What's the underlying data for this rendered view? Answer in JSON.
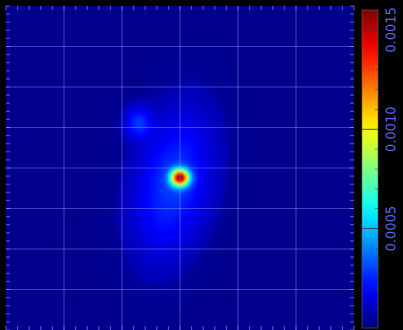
{
  "chart_data": {
    "type": "heatmap",
    "title": "",
    "xlabel": "",
    "ylabel": "",
    "grid": true,
    "colormap": "jet",
    "colorbar": {
      "range": [
        0,
        0.0016
      ],
      "ticks": [
        "0.0005",
        "0.0010",
        "0.0015"
      ],
      "tick_values": [
        0.0005,
        0.001,
        0.0015
      ],
      "position": "right"
    },
    "background_value": 0,
    "components": [
      {
        "name": "main-blob",
        "amp": 0.00025,
        "cx": 0.48,
        "cy": 0.55,
        "sx": 0.11,
        "sy": 0.23,
        "tilt": -0.18
      },
      {
        "name": "upper-lobe",
        "amp": 0.00022,
        "cx": 0.38,
        "cy": 0.36,
        "sx": 0.04,
        "sy": 0.05,
        "tilt": 0
      },
      {
        "name": "peak",
        "amp": 0.00135,
        "cx": 0.5,
        "cy": 0.53,
        "sx": 0.018,
        "sy": 0.018,
        "tilt": 0
      }
    ],
    "peak_value": 0.0016
  },
  "colors": {
    "background": "#000000",
    "colormap_low": "#00007f",
    "colormap_high": "#7f0000",
    "grid": "#9aa5ff",
    "tick_label": "#5a6cff"
  }
}
